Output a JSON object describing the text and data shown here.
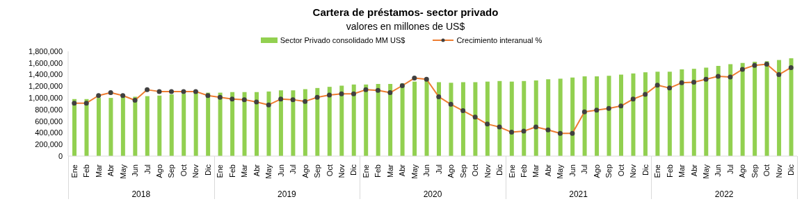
{
  "chart_data": {
    "type": "bar",
    "title": "Cartera de préstamos- sector privado",
    "subtitle": "valores en millones de US$",
    "categories": [
      "Ene",
      "Feb",
      "Mar",
      "Abr",
      "May",
      "Jun",
      "Jul",
      "Ago",
      "Sep",
      "Oct",
      "Nov",
      "Dic",
      "Ene",
      "Feb",
      "Mar",
      "Abr",
      "May",
      "Jun",
      "Jul",
      "Ago",
      "Sep",
      "Oct",
      "Nov",
      "Dic",
      "Ene",
      "Feb",
      "Mar",
      "Abr",
      "May",
      "Jun",
      "Jul",
      "Ago",
      "Sep",
      "Oct",
      "Nov",
      "Dic",
      "Ene",
      "Feb",
      "Mar",
      "Abr",
      "May",
      "Jun",
      "Jul",
      "Ago",
      "Sep",
      "Oct",
      "Nov",
      "Dic",
      "Ene",
      "Feb",
      "Mar",
      "Abr",
      "May",
      "Jun",
      "Jul",
      "Ago",
      "Sep",
      "Oct",
      "Nov",
      "Dic"
    ],
    "annotations": [
      "2018",
      "2019",
      "2020",
      "2021",
      "2022"
    ],
    "series": [
      {
        "name": "Sector Privado consolidado MM US$",
        "color": "#92d050",
        "values": [
          980000,
          980000,
          1000000,
          1000000,
          1020000,
          1020000,
          1030000,
          1040000,
          1060000,
          1070000,
          1090000,
          1090000,
          1090000,
          1100000,
          1100000,
          1100000,
          1110000,
          1130000,
          1130000,
          1150000,
          1170000,
          1190000,
          1210000,
          1230000,
          1230000,
          1240000,
          1240000,
          1250000,
          1280000,
          1300000,
          1270000,
          1260000,
          1270000,
          1270000,
          1280000,
          1290000,
          1280000,
          1290000,
          1300000,
          1320000,
          1330000,
          1350000,
          1370000,
          1370000,
          1380000,
          1400000,
          1420000,
          1440000,
          1450000,
          1450000,
          1490000,
          1500000,
          1520000,
          1550000,
          1580000,
          1600000,
          1620000,
          1630000,
          1650000,
          1680000
        ]
      },
      {
        "name": "Crecimiento interanual %",
        "type": "line",
        "color": "#ed7d31",
        "marker": "circle",
        "values": [
          910000,
          910000,
          1040000,
          1090000,
          1040000,
          960000,
          1140000,
          1110000,
          1110000,
          1110000,
          1110000,
          1040000,
          1010000,
          980000,
          970000,
          930000,
          880000,
          980000,
          970000,
          940000,
          1010000,
          1050000,
          1070000,
          1070000,
          1140000,
          1130000,
          1090000,
          1210000,
          1340000,
          1320000,
          1020000,
          890000,
          780000,
          670000,
          550000,
          500000,
          410000,
          430000,
          500000,
          450000,
          390000,
          390000,
          760000,
          790000,
          820000,
          860000,
          980000,
          1060000,
          1220000,
          1170000,
          1260000,
          1270000,
          1320000,
          1370000,
          1360000,
          1490000,
          1560000,
          1580000,
          1400000,
          1520000
        ]
      }
    ],
    "ylim": [
      0,
      1800000
    ],
    "yticks": [
      0,
      {
        "value": 200000,
        "label": "200,000"
      },
      {
        "value": 400000,
        "label": "400,000"
      },
      {
        "value": 600000,
        "label": "600,000"
      },
      {
        "value": 800000,
        "label": "800,000"
      },
      {
        "value": 1000000,
        "label": "1,000,000"
      },
      {
        "value": 1200000,
        "label": "1,200,000"
      },
      {
        "value": 1400000,
        "label": "1,400,000"
      },
      {
        "value": 1600000,
        "label": "1,600,000"
      },
      {
        "value": 1800000,
        "label": "1,800,000"
      }
    ],
    "legend": "top"
  }
}
